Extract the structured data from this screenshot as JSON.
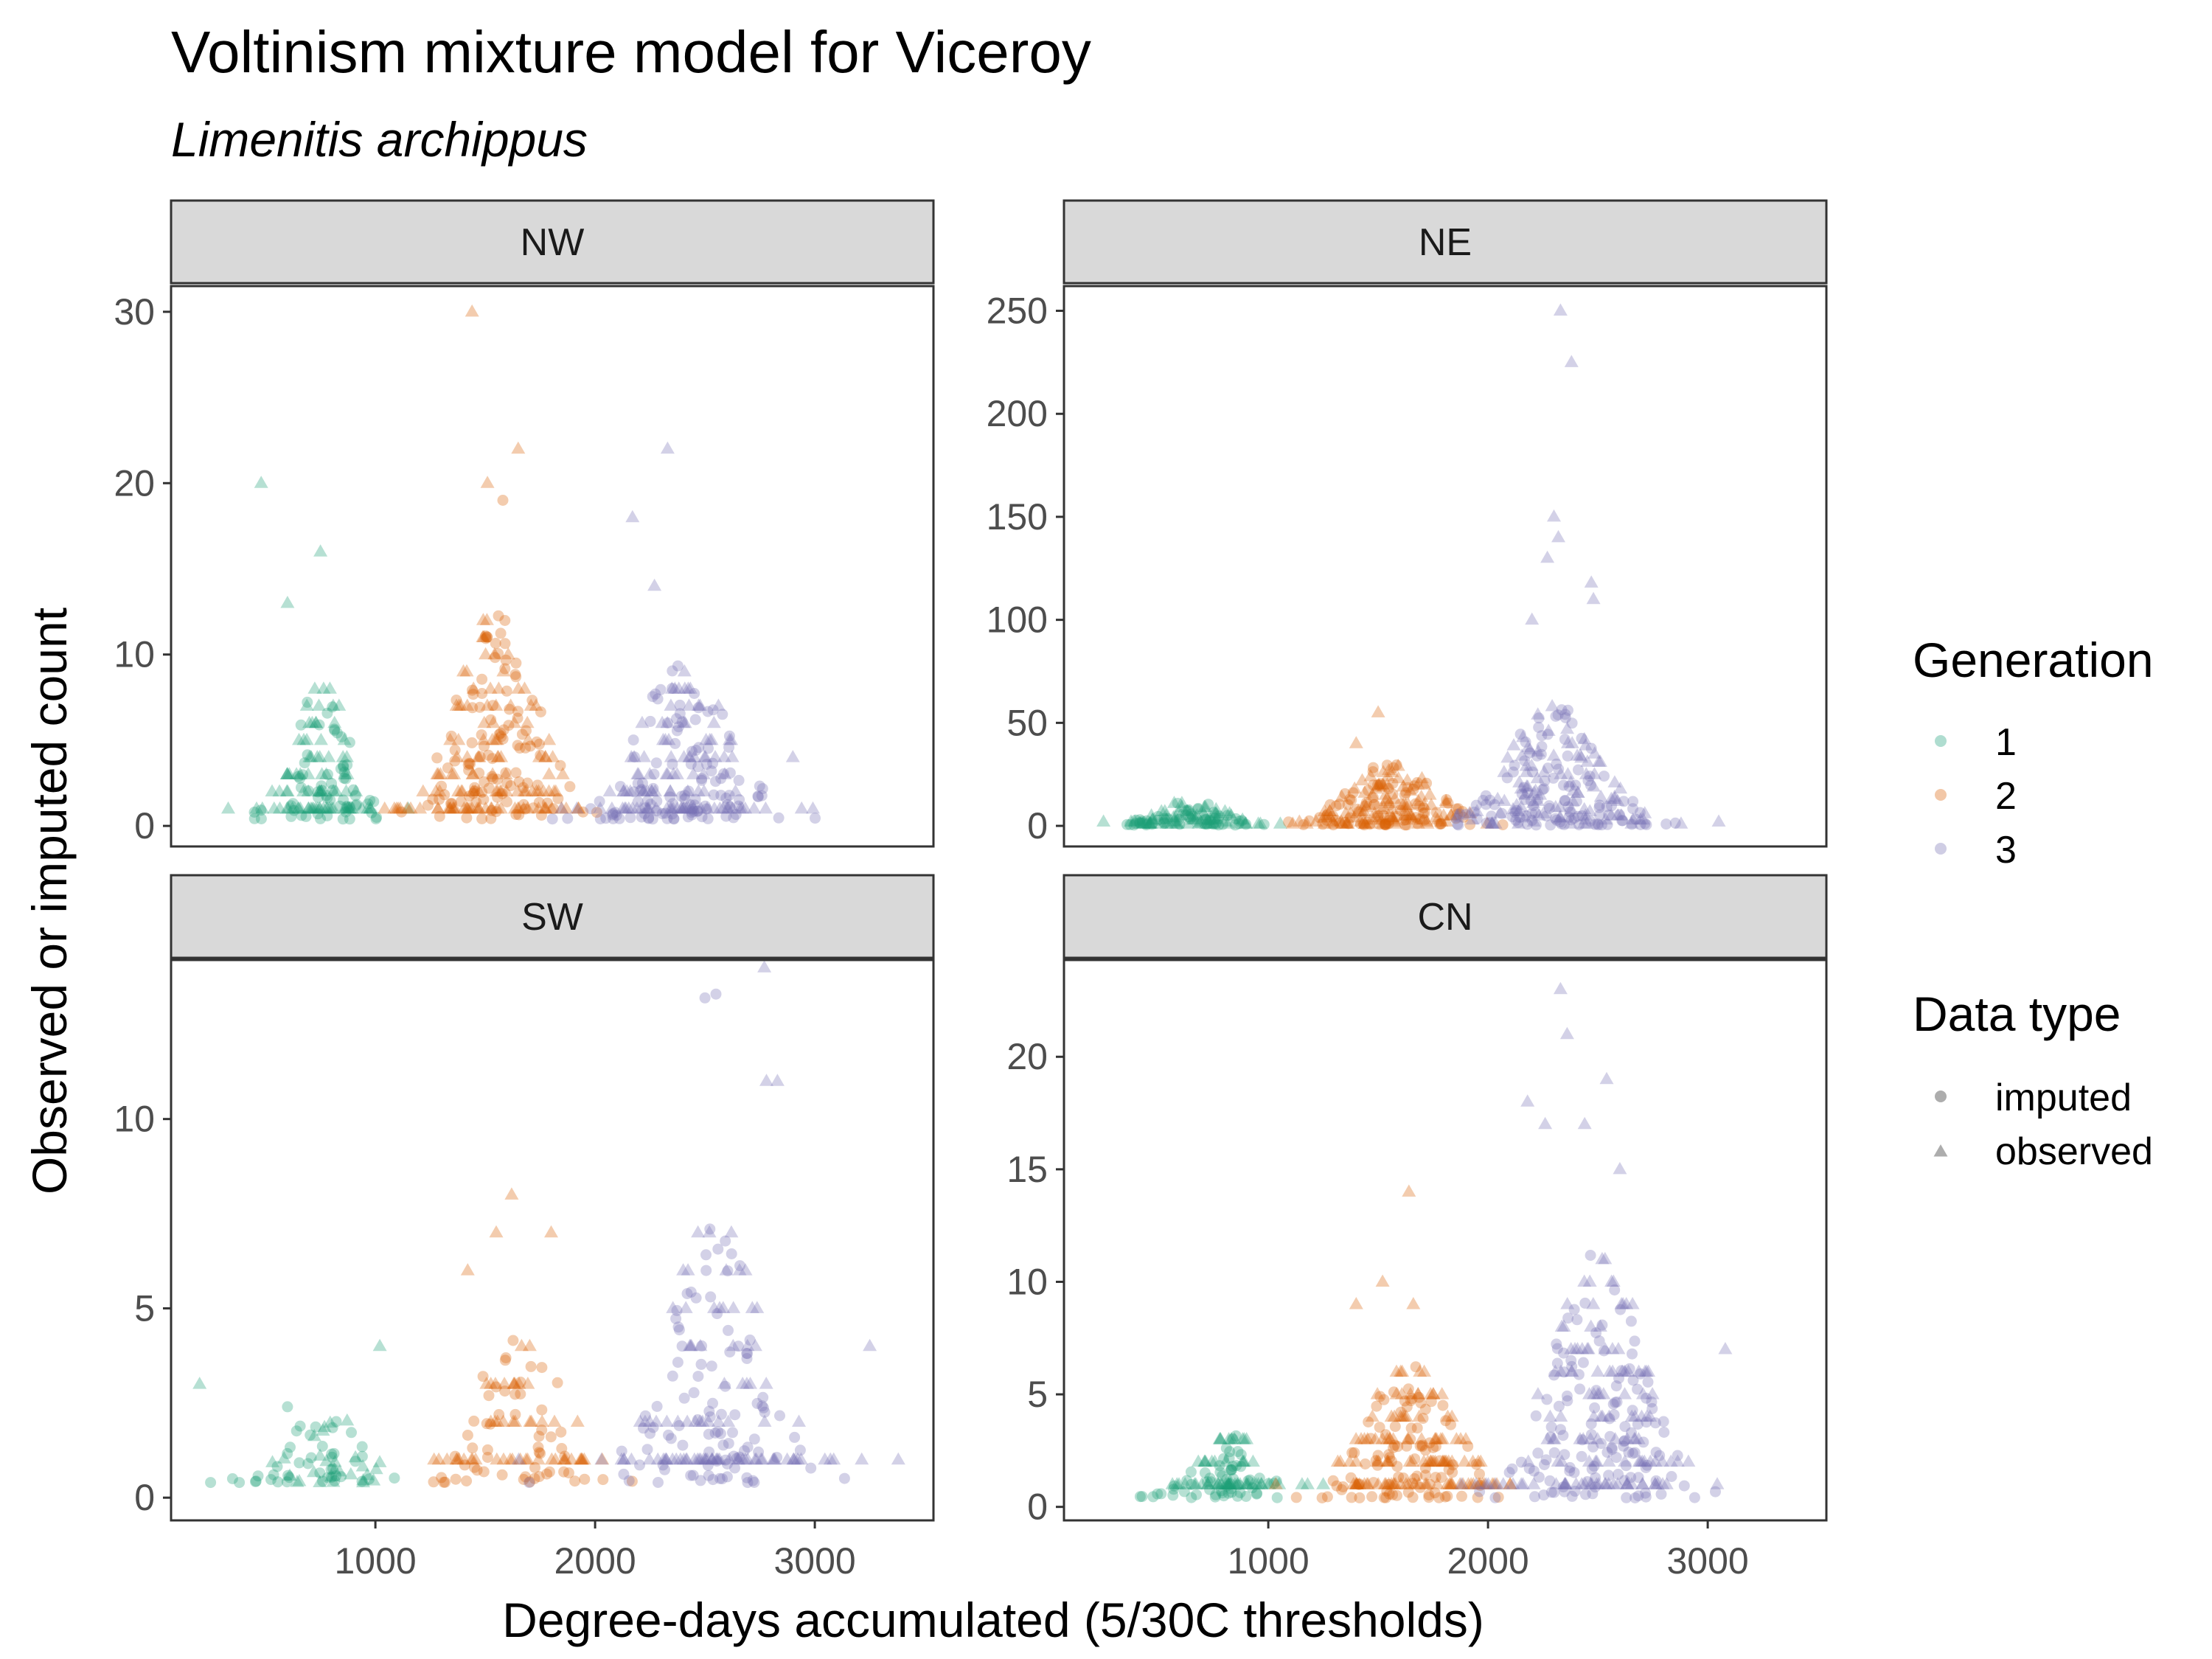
{
  "chart_data": {
    "type": "scatter",
    "title": "Voltinism mixture model for Viceroy",
    "subtitle": "Limenitis archippus",
    "xlabel": "Degree-days accumulated (5/30C thresholds)",
    "ylabel": "Observed or imputed count",
    "xlim": [
      70,
      3540
    ],
    "x_ticks": [
      1000,
      2000,
      3000
    ],
    "x_tick_labels": [
      "1000",
      "2000",
      "3000"
    ],
    "legend": {
      "position": "right",
      "generation": {
        "title": "Generation",
        "items": [
          {
            "label": "1",
            "color": "#1B9E77"
          },
          {
            "label": "2",
            "color": "#D95F02"
          },
          {
            "label": "3",
            "color": "#7570B3"
          }
        ]
      },
      "data_type": {
        "title": "Data type",
        "items": [
          {
            "label": "imputed",
            "shape": "circle"
          },
          {
            "label": "observed",
            "shape": "triangle"
          }
        ]
      }
    },
    "panels": [
      {
        "name": "NW",
        "ylim": [
          -1.2,
          31.5
        ],
        "y_ticks": [
          0,
          10,
          20,
          30
        ],
        "y_tick_labels": [
          "0",
          "10",
          "20",
          "30"
        ],
        "clusters": [
          {
            "gen": 1,
            "center": 750,
            "spread": 200,
            "peak": 8,
            "n": 150
          },
          {
            "gen": 2,
            "center": 1550,
            "spread": 290,
            "peak": 12,
            "n": 240
          },
          {
            "gen": 3,
            "center": 2400,
            "spread": 330,
            "peak": 9,
            "n": 230
          }
        ],
        "points": [
          {
            "gen": 1,
            "x": 480,
            "y": 20,
            "type": "observed"
          },
          {
            "gen": 1,
            "x": 750,
            "y": 16,
            "type": "observed"
          },
          {
            "gen": 1,
            "x": 600,
            "y": 13,
            "type": "observed"
          },
          {
            "gen": 1,
            "x": 330,
            "y": 1,
            "type": "observed"
          },
          {
            "gen": 2,
            "x": 1440,
            "y": 30,
            "type": "observed"
          },
          {
            "gen": 2,
            "x": 1650,
            "y": 22,
            "type": "observed"
          },
          {
            "gen": 2,
            "x": 1510,
            "y": 20,
            "type": "observed"
          },
          {
            "gen": 2,
            "x": 1580,
            "y": 19,
            "type": "imputed"
          },
          {
            "gen": 3,
            "x": 2330,
            "y": 22,
            "type": "observed"
          },
          {
            "gen": 3,
            "x": 2170,
            "y": 18,
            "type": "observed"
          },
          {
            "gen": 3,
            "x": 2270,
            "y": 14,
            "type": "observed"
          },
          {
            "gen": 3,
            "x": 2900,
            "y": 4,
            "type": "observed"
          }
        ]
      },
      {
        "name": "NE",
        "ylim": [
          -10,
          262
        ],
        "y_ticks": [
          0,
          50,
          100,
          150,
          200,
          250
        ],
        "y_tick_labels": [
          "0",
          "50",
          "100",
          "150",
          "200",
          "250"
        ],
        "clusters": [
          {
            "gen": 1,
            "center": 650,
            "spread": 230,
            "peak": 12,
            "n": 120
          },
          {
            "gen": 2,
            "center": 1550,
            "spread": 320,
            "peak": 30,
            "n": 200
          },
          {
            "gen": 3,
            "center": 2300,
            "spread": 320,
            "peak": 60,
            "n": 220
          }
        ],
        "points": [
          {
            "gen": 1,
            "x": 250,
            "y": 2,
            "type": "observed"
          },
          {
            "gen": 2,
            "x": 1500,
            "y": 55,
            "type": "observed"
          },
          {
            "gen": 2,
            "x": 1400,
            "y": 40,
            "type": "observed"
          },
          {
            "gen": 3,
            "x": 2330,
            "y": 250,
            "type": "observed"
          },
          {
            "gen": 3,
            "x": 2380,
            "y": 225,
            "type": "observed"
          },
          {
            "gen": 3,
            "x": 2300,
            "y": 150,
            "type": "observed"
          },
          {
            "gen": 3,
            "x": 2320,
            "y": 140,
            "type": "observed"
          },
          {
            "gen": 3,
            "x": 2270,
            "y": 130,
            "type": "observed"
          },
          {
            "gen": 3,
            "x": 2470,
            "y": 118,
            "type": "observed"
          },
          {
            "gen": 3,
            "x": 2480,
            "y": 110,
            "type": "observed"
          },
          {
            "gen": 3,
            "x": 2200,
            "y": 100,
            "type": "observed"
          },
          {
            "gen": 3,
            "x": 2350,
            "y": 42,
            "type": "imputed"
          },
          {
            "gen": 3,
            "x": 3050,
            "y": 2,
            "type": "observed"
          }
        ]
      },
      {
        "name": "SW",
        "ylim": [
          -0.6,
          14.2
        ],
        "y_ticks": [
          0,
          5,
          10
        ],
        "y_tick_labels": [
          "0",
          "5",
          "10"
        ],
        "clusters": [
          {
            "gen": 1,
            "center": 780,
            "spread": 260,
            "peak": 2,
            "n": 70
          },
          {
            "gen": 2,
            "center": 1650,
            "spread": 320,
            "peak": 4,
            "n": 110
          },
          {
            "gen": 3,
            "center": 2550,
            "spread": 350,
            "peak": 7,
            "n": 200
          }
        ],
        "points": [
          {
            "gen": 1,
            "x": 200,
            "y": 3,
            "type": "observed"
          },
          {
            "gen": 1,
            "x": 1020,
            "y": 4,
            "type": "observed"
          },
          {
            "gen": 1,
            "x": 250,
            "y": 0.4,
            "type": "imputed"
          },
          {
            "gen": 1,
            "x": 350,
            "y": 0.5,
            "type": "imputed"
          },
          {
            "gen": 1,
            "x": 600,
            "y": 2.4,
            "type": "imputed"
          },
          {
            "gen": 2,
            "x": 1620,
            "y": 8,
            "type": "observed"
          },
          {
            "gen": 2,
            "x": 1800,
            "y": 7,
            "type": "observed"
          },
          {
            "gen": 2,
            "x": 1550,
            "y": 7,
            "type": "observed"
          },
          {
            "gen": 2,
            "x": 1420,
            "y": 6,
            "type": "observed"
          },
          {
            "gen": 3,
            "x": 2770,
            "y": 14,
            "type": "observed"
          },
          {
            "gen": 3,
            "x": 2500,
            "y": 13.2,
            "type": "imputed"
          },
          {
            "gen": 3,
            "x": 2550,
            "y": 13.3,
            "type": "imputed"
          },
          {
            "gen": 3,
            "x": 2780,
            "y": 11,
            "type": "observed"
          },
          {
            "gen": 3,
            "x": 2830,
            "y": 11,
            "type": "observed"
          },
          {
            "gen": 3,
            "x": 3250,
            "y": 4,
            "type": "observed"
          },
          {
            "gen": 3,
            "x": 3380,
            "y": 1,
            "type": "observed"
          }
        ]
      },
      {
        "name": "CN",
        "ylim": [
          -0.6,
          24.3
        ],
        "y_ticks": [
          0,
          5,
          10,
          15,
          20
        ],
        "y_tick_labels": [
          "0",
          "5",
          "10",
          "15",
          "20"
        ],
        "clusters": [
          {
            "gen": 1,
            "center": 800,
            "spread": 230,
            "peak": 3,
            "n": 120
          },
          {
            "gen": 2,
            "center": 1650,
            "spread": 310,
            "peak": 6,
            "n": 220
          },
          {
            "gen": 3,
            "center": 2500,
            "spread": 330,
            "peak": 11,
            "n": 260
          }
        ],
        "points": [
          {
            "gen": 2,
            "x": 1640,
            "y": 14,
            "type": "observed"
          },
          {
            "gen": 2,
            "x": 1520,
            "y": 10,
            "type": "observed"
          },
          {
            "gen": 2,
            "x": 1400,
            "y": 9,
            "type": "observed"
          },
          {
            "gen": 2,
            "x": 1660,
            "y": 9,
            "type": "observed"
          },
          {
            "gen": 3,
            "x": 2330,
            "y": 23,
            "type": "observed"
          },
          {
            "gen": 3,
            "x": 2360,
            "y": 21,
            "type": "observed"
          },
          {
            "gen": 3,
            "x": 2540,
            "y": 19,
            "type": "observed"
          },
          {
            "gen": 3,
            "x": 2180,
            "y": 18,
            "type": "observed"
          },
          {
            "gen": 3,
            "x": 2440,
            "y": 17,
            "type": "observed"
          },
          {
            "gen": 3,
            "x": 2260,
            "y": 17,
            "type": "observed"
          },
          {
            "gen": 3,
            "x": 2600,
            "y": 15,
            "type": "observed"
          },
          {
            "gen": 3,
            "x": 3080,
            "y": 7,
            "type": "observed"
          }
        ]
      }
    ]
  }
}
